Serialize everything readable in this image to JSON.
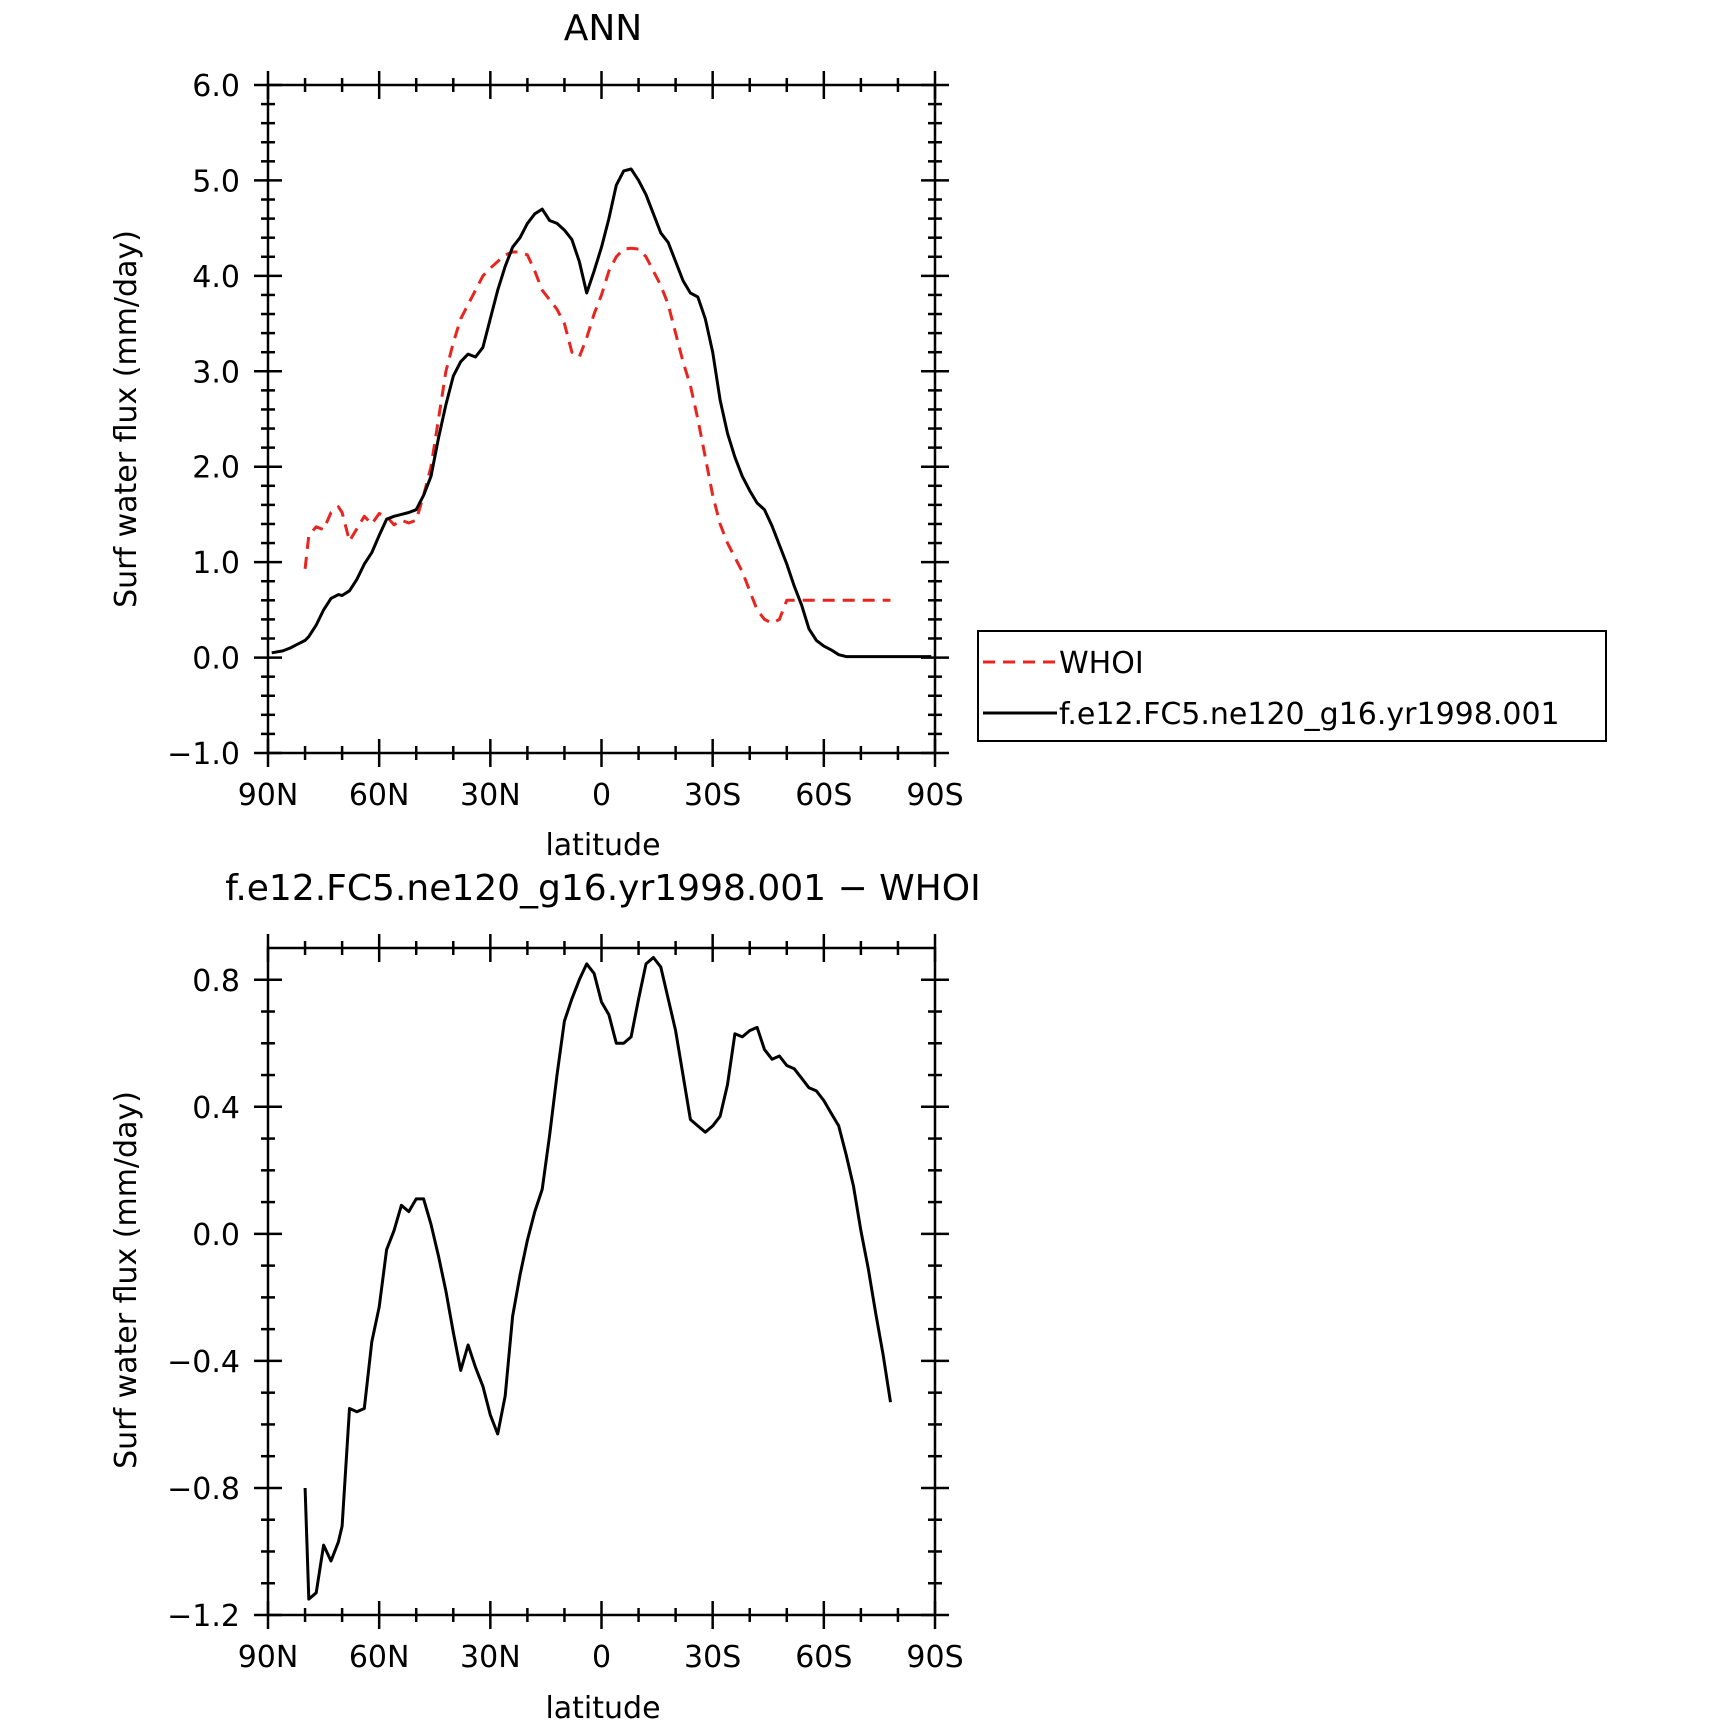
{
  "colors": {
    "axis": "#000000",
    "whoi": "#e8251f",
    "model": "#000000"
  },
  "chart_data": [
    {
      "type": "line",
      "title": "ANN",
      "xlabel": "latitude",
      "ylabel": "Surf water flux (mm/day)",
      "xlim": [
        90,
        -90
      ],
      "ylim": [
        -1.0,
        6.0
      ],
      "x_ticks": [
        90,
        60,
        30,
        0,
        -30,
        -60,
        -90
      ],
      "x_tick_labels": [
        "90N",
        "60N",
        "30N",
        "0",
        "30S",
        "60S",
        "90S"
      ],
      "y_ticks": [
        -1.0,
        0.0,
        1.0,
        2.0,
        3.0,
        4.0,
        5.0,
        6.0
      ],
      "y_tick_labels": [
        "−1.0",
        "0.0",
        "1.0",
        "2.0",
        "3.0",
        "4.0",
        "5.0",
        "6.0"
      ],
      "grid": false,
      "legend_position": "right-outside",
      "series": [
        {
          "name": "WHOI",
          "style": "dashed",
          "color": "#e8251f",
          "x": [
            80,
            79,
            77,
            75,
            73,
            71,
            70,
            68,
            66,
            64,
            62,
            60,
            58,
            56,
            54,
            52,
            50,
            48,
            46,
            44,
            42,
            40,
            38,
            36,
            34,
            32,
            30,
            28,
            26,
            24,
            22,
            20,
            18,
            16,
            14,
            12,
            10,
            8,
            6,
            4,
            2,
            0,
            -2,
            -4,
            -6,
            -8,
            -10,
            -12,
            -14,
            -16,
            -18,
            -20,
            -22,
            -24,
            -26,
            -28,
            -30,
            -32,
            -34,
            -36,
            -38,
            -40,
            -42,
            -44,
            -46,
            -48,
            -50,
            -52,
            -54,
            -56,
            -58,
            -60,
            -62,
            -64,
            -66,
            -68,
            -70,
            -72,
            -74,
            -76,
            -78
          ],
          "values": [
            0.93,
            1.28,
            1.37,
            1.34,
            1.52,
            1.58,
            1.52,
            1.22,
            1.35,
            1.48,
            1.4,
            1.51,
            1.48,
            1.39,
            1.44,
            1.41,
            1.44,
            1.7,
            2.0,
            2.5,
            3.0,
            3.3,
            3.55,
            3.7,
            3.85,
            4.0,
            4.08,
            4.15,
            4.22,
            4.25,
            4.25,
            4.22,
            4.05,
            3.85,
            3.75,
            3.65,
            3.5,
            3.2,
            3.15,
            3.35,
            3.6,
            3.8,
            4.05,
            4.2,
            4.28,
            4.29,
            4.28,
            4.2,
            4.05,
            3.9,
            3.7,
            3.4,
            3.1,
            2.85,
            2.5,
            2.1,
            1.7,
            1.4,
            1.2,
            1.05,
            0.9,
            0.7,
            0.5,
            0.4,
            0.36,
            0.4,
            0.6,
            0.6,
            0.6,
            0.6,
            0.6,
            0.6,
            0.6,
            0.6,
            0.6,
            0.6,
            0.6,
            0.6,
            0.6,
            0.6,
            0.6
          ]
        },
        {
          "name": "f.e12.FC5.ne120_g16.yr1998.001",
          "style": "solid",
          "color": "#000000",
          "x": [
            89,
            86,
            84,
            82,
            80,
            79,
            77,
            75,
            73,
            71,
            70,
            68,
            66,
            64,
            62,
            60,
            58,
            56,
            54,
            52,
            50,
            48,
            46,
            44,
            42,
            40,
            38,
            36,
            34,
            32,
            30,
            28,
            26,
            24,
            22,
            20,
            18,
            16,
            14,
            12,
            10,
            8,
            6,
            4,
            2,
            0,
            -2,
            -4,
            -6,
            -8,
            -10,
            -12,
            -14,
            -16,
            -18,
            -20,
            -22,
            -24,
            -26,
            -28,
            -30,
            -32,
            -34,
            -36,
            -38,
            -40,
            -42,
            -44,
            -46,
            -48,
            -50,
            -52,
            -54,
            -56,
            -58,
            -60,
            -62,
            -64,
            -66,
            -68,
            -70,
            -72,
            -74,
            -76,
            -78,
            -80,
            -82,
            -84,
            -86,
            -88,
            -89
          ],
          "values": [
            0.05,
            0.07,
            0.1,
            0.14,
            0.18,
            0.22,
            0.34,
            0.5,
            0.62,
            0.66,
            0.65,
            0.7,
            0.82,
            0.98,
            1.1,
            1.28,
            1.45,
            1.48,
            1.5,
            1.52,
            1.55,
            1.7,
            1.9,
            2.3,
            2.65,
            2.95,
            3.1,
            3.18,
            3.15,
            3.25,
            3.55,
            3.85,
            4.1,
            4.3,
            4.4,
            4.55,
            4.65,
            4.7,
            4.58,
            4.55,
            4.48,
            4.38,
            4.15,
            3.82,
            4.05,
            4.3,
            4.6,
            4.95,
            5.1,
            5.12,
            5.0,
            4.85,
            4.65,
            4.45,
            4.35,
            4.15,
            3.95,
            3.82,
            3.78,
            3.55,
            3.2,
            2.7,
            2.35,
            2.1,
            1.9,
            1.75,
            1.62,
            1.55,
            1.38,
            1.18,
            0.98,
            0.75,
            0.55,
            0.3,
            0.18,
            0.12,
            0.08,
            0.03,
            0.01,
            0.01,
            0.01,
            0.01,
            0.01,
            0.01,
            0.01,
            0.01,
            0.01,
            0.01,
            0.01,
            0.01,
            0.01
          ]
        }
      ]
    },
    {
      "type": "line",
      "title": "f.e12.FC5.ne120_g16.yr1998.001 − WHOI",
      "xlabel": "latitude",
      "ylabel": "Surf water flux (mm/day)",
      "xlim": [
        90,
        -90
      ],
      "ylim": [
        -1.2,
        0.9
      ],
      "x_ticks": [
        90,
        60,
        30,
        0,
        -30,
        -60,
        -90
      ],
      "x_tick_labels": [
        "90N",
        "60N",
        "30N",
        "0",
        "30S",
        "60S",
        "90S"
      ],
      "y_ticks": [
        -1.2,
        -0.8,
        -0.4,
        0.0,
        0.4,
        0.8
      ],
      "y_tick_labels": [
        "−1.2",
        "−0.8",
        "−0.4",
        "0.0",
        "0.4",
        "0.8"
      ],
      "grid": false,
      "series": [
        {
          "style": "solid",
          "color": "#000000",
          "x": [
            80,
            79,
            77,
            75,
            73,
            71,
            70,
            68,
            66,
            64,
            62,
            60,
            58,
            56,
            54,
            52,
            50,
            48,
            46,
            44,
            42,
            40,
            38,
            36,
            34,
            32,
            30,
            28,
            26,
            24,
            22,
            20,
            18,
            16,
            14,
            12,
            10,
            8,
            6,
            4,
            2,
            0,
            -2,
            -4,
            -6,
            -8,
            -10,
            -12,
            -14,
            -16,
            -18,
            -20,
            -22,
            -24,
            -26,
            -28,
            -30,
            -32,
            -34,
            -36,
            -38,
            -40,
            -42,
            -44,
            -46,
            -48,
            -50,
            -52,
            -54,
            -56,
            -58,
            -60,
            -62,
            -64,
            -66,
            -68,
            -70,
            -72,
            -74,
            -76,
            -78
          ],
          "values": [
            -0.8,
            -1.15,
            -1.13,
            -0.98,
            -1.03,
            -0.97,
            -0.92,
            -0.55,
            -0.56,
            -0.55,
            -0.34,
            -0.23,
            -0.05,
            0.01,
            0.09,
            0.07,
            0.11,
            0.11,
            0.03,
            -0.07,
            -0.18,
            -0.31,
            -0.43,
            -0.35,
            -0.42,
            -0.48,
            -0.57,
            -0.63,
            -0.51,
            -0.26,
            -0.13,
            -0.02,
            0.07,
            0.14,
            0.31,
            0.5,
            0.67,
            0.74,
            0.8,
            0.85,
            0.82,
            0.73,
            0.69,
            0.6,
            0.6,
            0.62,
            0.74,
            0.85,
            0.87,
            0.84,
            0.74,
            0.64,
            0.5,
            0.36,
            0.34,
            0.32,
            0.34,
            0.37,
            0.47,
            0.63,
            0.62,
            0.64,
            0.65,
            0.58,
            0.55,
            0.56,
            0.53,
            0.52,
            0.49,
            0.46,
            0.45,
            0.42,
            0.38,
            0.34,
            0.25,
            0.15,
            0.01,
            -0.11,
            -0.25,
            -0.38,
            -0.53
          ]
        }
      ]
    }
  ]
}
